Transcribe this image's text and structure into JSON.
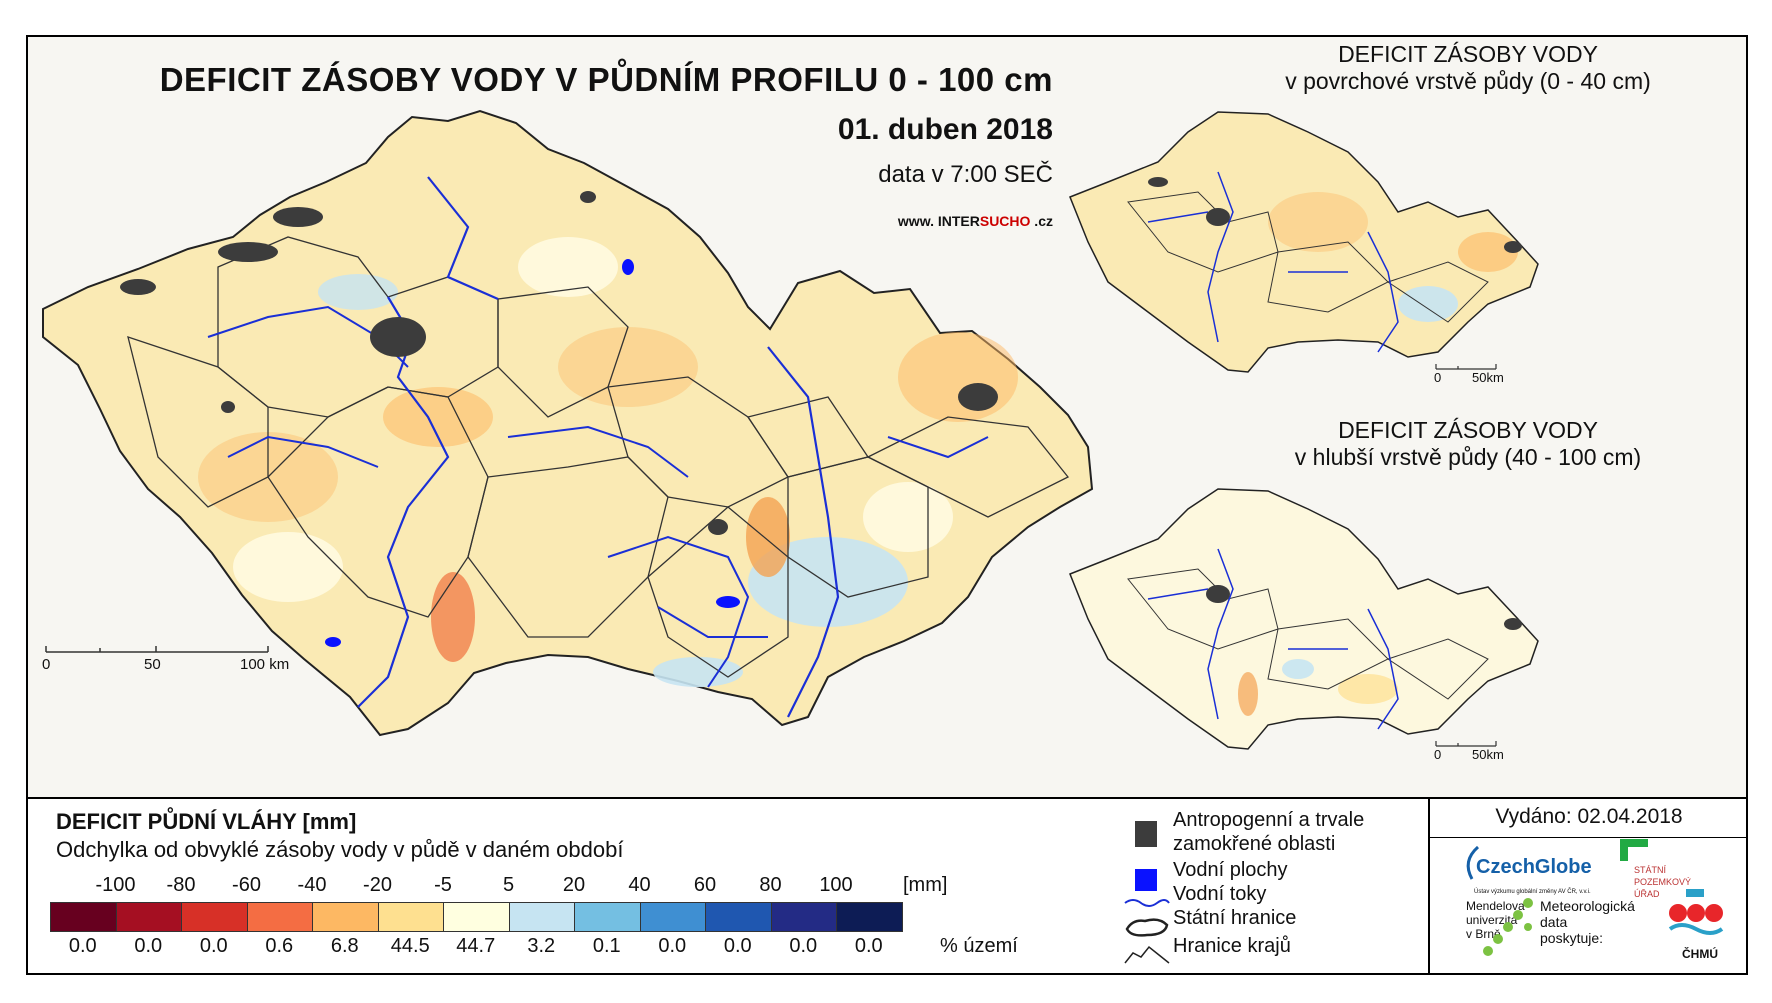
{
  "main": {
    "title": "DEFICIT ZÁSOBY VODY V PŮDNÍM PROFILU 0 - 100 cm",
    "date": "01. duben 2018",
    "time": "data v 7:00 SEČ",
    "website_prefix": "www. INTER",
    "website_red": "SUCHO",
    "website_suffix": " .cz",
    "scale_labels": [
      "0",
      "50",
      "100 km"
    ]
  },
  "insets": [
    {
      "title_line1": "DEFICIT ZÁSOBY VODY",
      "title_line2": "v povrchové vrstvě půdy (0 - 40 cm)",
      "scale_labels": [
        "0",
        "50km"
      ]
    },
    {
      "title_line1": "DEFICIT ZÁSOBY VODY",
      "title_line2": "v hlubší vrstvě půdy (40 - 100 cm)",
      "scale_labels": [
        "0",
        "50km"
      ]
    }
  ],
  "legend": {
    "title": "DEFICIT PŮDNÍ VLÁHY [mm]",
    "subtitle": "Odchylka od obvyklé zásoby vody v půdě v daném období",
    "breaks": [
      "-100",
      "-80",
      "-60",
      "-40",
      "-20",
      "-5",
      "5",
      "20",
      "40",
      "60",
      "80",
      "100"
    ],
    "unit": "[mm]",
    "classes": [
      {
        "color": "#67001f",
        "percent": "0.0"
      },
      {
        "color": "#a50f22",
        "percent": "0.0"
      },
      {
        "color": "#d73027",
        "percent": "0.0"
      },
      {
        "color": "#f46d43",
        "percent": "0.6"
      },
      {
        "color": "#fdb863",
        "percent": "6.8"
      },
      {
        "color": "#fee090",
        "percent": "44.5"
      },
      {
        "color": "#ffffe0",
        "percent": "44.7"
      },
      {
        "color": "#c6e4f2",
        "percent": "3.2"
      },
      {
        "color": "#74bfe2",
        "percent": "0.1"
      },
      {
        "color": "#3f8fd2",
        "percent": "0.0"
      },
      {
        "color": "#1f57b0",
        "percent": "0.0"
      },
      {
        "color": "#232b85",
        "percent": "0.0"
      },
      {
        "color": "#0d1c55",
        "percent": "0.0"
      }
    ],
    "percent_label": "% území"
  },
  "symbols": {
    "anthropogenic_line1": "Antropogenní a trvale",
    "anthropogenic_line2": "zamokřené oblasti",
    "water_bodies": "Vodní plochy",
    "rivers": "Vodní toky",
    "state_border": "Státní hranice",
    "region_border": "Hranice krajů"
  },
  "credits": {
    "issued": "Vydáno: 02.04.2018",
    "czechglobe": "CzechGlobe",
    "czechglobe_sub": "Ústav výzkumu globální změny AV ČR, v.v.i.",
    "szu_line1": "STÁTNÍ",
    "szu_line2": "POZEMKOVÝ",
    "szu_line3": "ÚŘAD",
    "mendel_line1": "Mendelova",
    "mendel_line2": "univerzita",
    "mendel_line3": "v Brně",
    "meteo_line1": "Meteorologická",
    "meteo_line2": "data",
    "meteo_line3": "poskytuje:",
    "chmu": "ČHMÚ"
  },
  "colors": {
    "river": "#1a2fd6",
    "anthropogenic": "#3c3c3c",
    "water": "#0a12ff",
    "czechglobe_blue": "#1560a8",
    "szu_green": "#22aa44",
    "chmu_red": "#e8262a"
  }
}
